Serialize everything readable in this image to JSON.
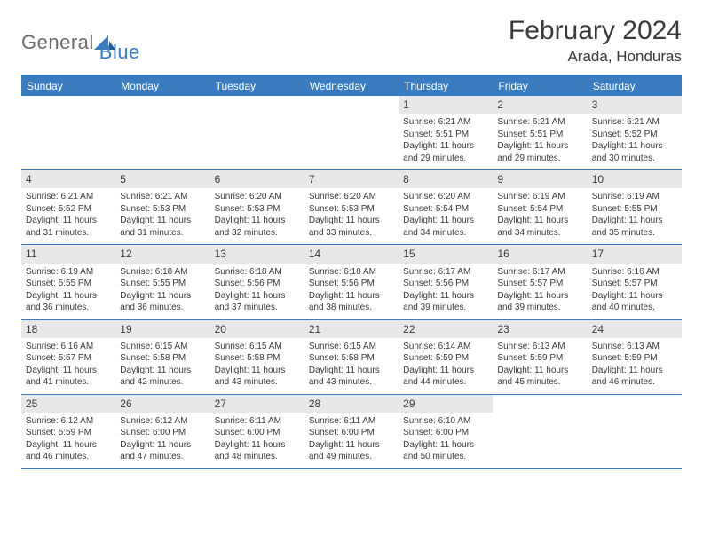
{
  "brand": {
    "part1": "General",
    "part2": "Blue"
  },
  "title": "February 2024",
  "location": "Arada, Honduras",
  "colors": {
    "accent": "#3b7bbf",
    "dayBarBg": "#e8e8e8",
    "text": "#3a3a3a",
    "headerText": "#ffffff",
    "pageBg": "#ffffff"
  },
  "weekdays": [
    "Sunday",
    "Monday",
    "Tuesday",
    "Wednesday",
    "Thursday",
    "Friday",
    "Saturday"
  ],
  "weeks": [
    [
      {
        "empty": true
      },
      {
        "empty": true
      },
      {
        "empty": true
      },
      {
        "empty": true
      },
      {
        "day": "1",
        "sunrise": "Sunrise: 6:21 AM",
        "sunset": "Sunset: 5:51 PM",
        "daylight": "Daylight: 11 hours and 29 minutes."
      },
      {
        "day": "2",
        "sunrise": "Sunrise: 6:21 AM",
        "sunset": "Sunset: 5:51 PM",
        "daylight": "Daylight: 11 hours and 29 minutes."
      },
      {
        "day": "3",
        "sunrise": "Sunrise: 6:21 AM",
        "sunset": "Sunset: 5:52 PM",
        "daylight": "Daylight: 11 hours and 30 minutes."
      }
    ],
    [
      {
        "day": "4",
        "sunrise": "Sunrise: 6:21 AM",
        "sunset": "Sunset: 5:52 PM",
        "daylight": "Daylight: 11 hours and 31 minutes."
      },
      {
        "day": "5",
        "sunrise": "Sunrise: 6:21 AM",
        "sunset": "Sunset: 5:53 PM",
        "daylight": "Daylight: 11 hours and 31 minutes."
      },
      {
        "day": "6",
        "sunrise": "Sunrise: 6:20 AM",
        "sunset": "Sunset: 5:53 PM",
        "daylight": "Daylight: 11 hours and 32 minutes."
      },
      {
        "day": "7",
        "sunrise": "Sunrise: 6:20 AM",
        "sunset": "Sunset: 5:53 PM",
        "daylight": "Daylight: 11 hours and 33 minutes."
      },
      {
        "day": "8",
        "sunrise": "Sunrise: 6:20 AM",
        "sunset": "Sunset: 5:54 PM",
        "daylight": "Daylight: 11 hours and 34 minutes."
      },
      {
        "day": "9",
        "sunrise": "Sunrise: 6:19 AM",
        "sunset": "Sunset: 5:54 PM",
        "daylight": "Daylight: 11 hours and 34 minutes."
      },
      {
        "day": "10",
        "sunrise": "Sunrise: 6:19 AM",
        "sunset": "Sunset: 5:55 PM",
        "daylight": "Daylight: 11 hours and 35 minutes."
      }
    ],
    [
      {
        "day": "11",
        "sunrise": "Sunrise: 6:19 AM",
        "sunset": "Sunset: 5:55 PM",
        "daylight": "Daylight: 11 hours and 36 minutes."
      },
      {
        "day": "12",
        "sunrise": "Sunrise: 6:18 AM",
        "sunset": "Sunset: 5:55 PM",
        "daylight": "Daylight: 11 hours and 36 minutes."
      },
      {
        "day": "13",
        "sunrise": "Sunrise: 6:18 AM",
        "sunset": "Sunset: 5:56 PM",
        "daylight": "Daylight: 11 hours and 37 minutes."
      },
      {
        "day": "14",
        "sunrise": "Sunrise: 6:18 AM",
        "sunset": "Sunset: 5:56 PM",
        "daylight": "Daylight: 11 hours and 38 minutes."
      },
      {
        "day": "15",
        "sunrise": "Sunrise: 6:17 AM",
        "sunset": "Sunset: 5:56 PM",
        "daylight": "Daylight: 11 hours and 39 minutes."
      },
      {
        "day": "16",
        "sunrise": "Sunrise: 6:17 AM",
        "sunset": "Sunset: 5:57 PM",
        "daylight": "Daylight: 11 hours and 39 minutes."
      },
      {
        "day": "17",
        "sunrise": "Sunrise: 6:16 AM",
        "sunset": "Sunset: 5:57 PM",
        "daylight": "Daylight: 11 hours and 40 minutes."
      }
    ],
    [
      {
        "day": "18",
        "sunrise": "Sunrise: 6:16 AM",
        "sunset": "Sunset: 5:57 PM",
        "daylight": "Daylight: 11 hours and 41 minutes."
      },
      {
        "day": "19",
        "sunrise": "Sunrise: 6:15 AM",
        "sunset": "Sunset: 5:58 PM",
        "daylight": "Daylight: 11 hours and 42 minutes."
      },
      {
        "day": "20",
        "sunrise": "Sunrise: 6:15 AM",
        "sunset": "Sunset: 5:58 PM",
        "daylight": "Daylight: 11 hours and 43 minutes."
      },
      {
        "day": "21",
        "sunrise": "Sunrise: 6:15 AM",
        "sunset": "Sunset: 5:58 PM",
        "daylight": "Daylight: 11 hours and 43 minutes."
      },
      {
        "day": "22",
        "sunrise": "Sunrise: 6:14 AM",
        "sunset": "Sunset: 5:59 PM",
        "daylight": "Daylight: 11 hours and 44 minutes."
      },
      {
        "day": "23",
        "sunrise": "Sunrise: 6:13 AM",
        "sunset": "Sunset: 5:59 PM",
        "daylight": "Daylight: 11 hours and 45 minutes."
      },
      {
        "day": "24",
        "sunrise": "Sunrise: 6:13 AM",
        "sunset": "Sunset: 5:59 PM",
        "daylight": "Daylight: 11 hours and 46 minutes."
      }
    ],
    [
      {
        "day": "25",
        "sunrise": "Sunrise: 6:12 AM",
        "sunset": "Sunset: 5:59 PM",
        "daylight": "Daylight: 11 hours and 46 minutes."
      },
      {
        "day": "26",
        "sunrise": "Sunrise: 6:12 AM",
        "sunset": "Sunset: 6:00 PM",
        "daylight": "Daylight: 11 hours and 47 minutes."
      },
      {
        "day": "27",
        "sunrise": "Sunrise: 6:11 AM",
        "sunset": "Sunset: 6:00 PM",
        "daylight": "Daylight: 11 hours and 48 minutes."
      },
      {
        "day": "28",
        "sunrise": "Sunrise: 6:11 AM",
        "sunset": "Sunset: 6:00 PM",
        "daylight": "Daylight: 11 hours and 49 minutes."
      },
      {
        "day": "29",
        "sunrise": "Sunrise: 6:10 AM",
        "sunset": "Sunset: 6:00 PM",
        "daylight": "Daylight: 11 hours and 50 minutes."
      },
      {
        "empty": true
      },
      {
        "empty": true
      }
    ]
  ]
}
